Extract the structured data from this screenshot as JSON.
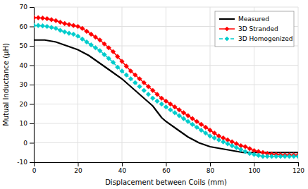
{
  "chart_data": {
    "type": "line",
    "xlabel": "Displacement between Coils (mm)",
    "ylabel": "Mutual Inductance (μH)",
    "xlim": [
      0,
      120
    ],
    "ylim": [
      -10,
      70
    ],
    "xticks": [
      0,
      20,
      40,
      60,
      80,
      100,
      120
    ],
    "yticks": [
      -10,
      0,
      10,
      20,
      30,
      40,
      50,
      60,
      70
    ],
    "grid": true,
    "legend": "upper right",
    "series": [
      {
        "name": "Measured",
        "color": "#000000",
        "line_style": "solid",
        "x": [
          0,
          5,
          10,
          15,
          20,
          25,
          30,
          35,
          40,
          42,
          44,
          46,
          48,
          50,
          52,
          54,
          56,
          58,
          60,
          65,
          70,
          75,
          80,
          85,
          90,
          95,
          100,
          105,
          110,
          115,
          120
        ],
        "values": [
          53,
          53,
          52,
          50,
          48,
          45,
          41,
          37,
          33,
          31,
          29,
          27,
          25,
          23,
          21,
          19,
          16,
          13,
          11,
          7,
          3,
          0,
          -2,
          -3,
          -4,
          -5,
          -5,
          -5,
          -5,
          -5,
          -5
        ]
      },
      {
        "name": "3D Stranded",
        "color": "#FF0000",
        "line_style": "solid",
        "marker": "diamond",
        "x": [
          0,
          2,
          4,
          6,
          8,
          10,
          12,
          14,
          16,
          18,
          20,
          22,
          24,
          26,
          28,
          30,
          32,
          34,
          36,
          38,
          40,
          42,
          44,
          46,
          48,
          50,
          52,
          54,
          56,
          58,
          60,
          62,
          64,
          66,
          68,
          70,
          72,
          74,
          76,
          78,
          80,
          82,
          84,
          86,
          88,
          90,
          92,
          94,
          96,
          98,
          100,
          102,
          104,
          106,
          108,
          110,
          112,
          114,
          116,
          118,
          120
        ],
        "values": [
          64.5,
          64.5,
          64.3,
          64.0,
          63.5,
          63.0,
          62.2,
          61.5,
          61.0,
          60.5,
          60.0,
          59.0,
          57.5,
          56.0,
          54.5,
          53.0,
          51.0,
          49.0,
          47.0,
          44.5,
          42.0,
          39.5,
          37.0,
          35.0,
          33.0,
          31.0,
          29.0,
          27.0,
          25.0,
          23.0,
          21.5,
          20.0,
          18.5,
          17.0,
          15.5,
          14.0,
          12.5,
          11.0,
          9.5,
          8.0,
          6.5,
          5.0,
          3.5,
          2.5,
          1.5,
          0.5,
          -0.5,
          -1.5,
          -2.0,
          -3.0,
          -4.0,
          -4.5,
          -5.0,
          -5.5,
          -5.8,
          -6.0,
          -6.2,
          -6.3,
          -6.3,
          -6.3,
          -6.3
        ]
      },
      {
        "name": "3D Homogenized",
        "color": "#00CCCC",
        "line_style": "dashed",
        "marker": "diamond",
        "x": [
          0,
          2,
          4,
          6,
          8,
          10,
          12,
          14,
          16,
          18,
          20,
          22,
          24,
          26,
          28,
          30,
          32,
          34,
          36,
          38,
          40,
          42,
          44,
          46,
          48,
          50,
          52,
          54,
          56,
          58,
          60,
          62,
          64,
          66,
          68,
          70,
          72,
          74,
          76,
          78,
          80,
          82,
          84,
          86,
          88,
          90,
          92,
          94,
          96,
          98,
          100,
          102,
          104,
          106,
          108,
          110,
          112,
          114,
          116,
          118,
          120
        ],
        "values": [
          60.5,
          60.5,
          60.3,
          60.0,
          59.5,
          59.0,
          58.0,
          57.2,
          56.5,
          56.0,
          55.0,
          53.5,
          52.0,
          50.5,
          49.0,
          47.5,
          45.5,
          43.5,
          41.5,
          39.0,
          37.0,
          35.0,
          33.0,
          31.0,
          29.0,
          27.0,
          25.0,
          23.0,
          21.5,
          20.0,
          18.5,
          17.0,
          15.5,
          14.0,
          12.5,
          11.0,
          9.5,
          8.0,
          6.5,
          5.0,
          3.5,
          2.5,
          1.5,
          0.5,
          -0.5,
          -1.5,
          -2.5,
          -3.5,
          -4.5,
          -5.5,
          -6.0,
          -6.5,
          -7.0,
          -7.0,
          -7.0,
          -7.0,
          -7.0,
          -7.0,
          -7.0,
          -7.0,
          -7.0
        ]
      }
    ]
  }
}
